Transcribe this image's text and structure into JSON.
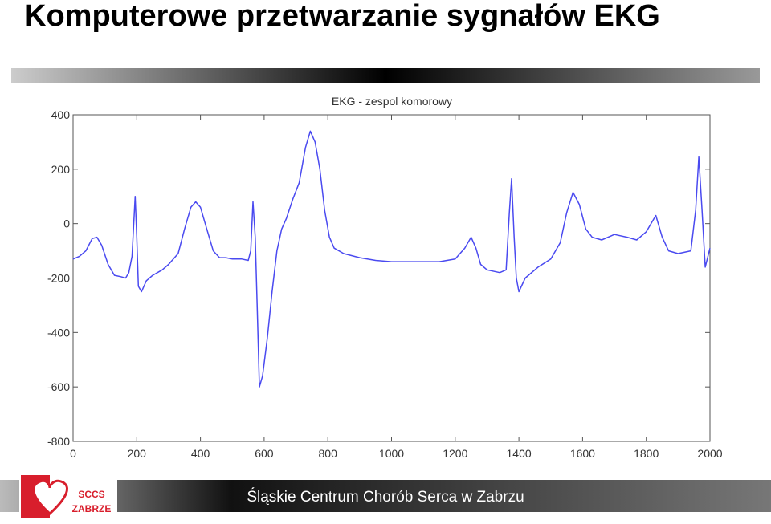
{
  "slide": {
    "title": "Komputerowe przetwarzanie sygnałów EKG",
    "footer": "Śląskie Centrum Chorób Serca w Zabrzu",
    "logo_line1": "SCCS",
    "logo_line2": "ZABRZE"
  },
  "chart_data": {
    "type": "line",
    "title": "EKG - zespol komorowy",
    "color": "#4a4af0",
    "x": [
      0,
      20,
      40,
      60,
      75,
      90,
      110,
      130,
      150,
      165,
      175,
      185,
      195,
      200,
      205,
      215,
      230,
      250,
      280,
      300,
      330,
      350,
      370,
      385,
      400,
      420,
      440,
      460,
      480,
      500,
      530,
      550,
      558,
      565,
      572,
      578,
      585,
      595,
      610,
      625,
      640,
      655,
      670,
      690,
      710,
      730,
      745,
      760,
      775,
      790,
      805,
      820,
      850,
      900,
      950,
      1000,
      1050,
      1100,
      1150,
      1200,
      1230,
      1250,
      1265,
      1280,
      1300,
      1340,
      1360,
      1370,
      1377,
      1385,
      1392,
      1400,
      1420,
      1460,
      1500,
      1530,
      1550,
      1570,
      1590,
      1610,
      1630,
      1660,
      1700,
      1740,
      1770,
      1800,
      1830,
      1850,
      1870,
      1900,
      1940,
      1955,
      1965,
      1975,
      1985,
      2000
    ],
    "values": [
      -130,
      -120,
      -100,
      -55,
      -50,
      -80,
      -150,
      -190,
      -195,
      -200,
      -180,
      -120,
      100,
      -50,
      -230,
      -250,
      -210,
      -190,
      -170,
      -150,
      -110,
      -20,
      60,
      80,
      60,
      -20,
      -100,
      -125,
      -125,
      -130,
      -130,
      -135,
      -100,
      80,
      -50,
      -300,
      -600,
      -560,
      -420,
      -250,
      -100,
      -20,
      20,
      90,
      150,
      280,
      340,
      300,
      200,
      50,
      -50,
      -90,
      -110,
      -125,
      -135,
      -140,
      -140,
      -140,
      -140,
      -130,
      -90,
      -50,
      -90,
      -150,
      -170,
      -180,
      -170,
      40,
      165,
      -50,
      -200,
      -250,
      -200,
      -160,
      -130,
      -70,
      40,
      115,
      70,
      -20,
      -50,
      -60,
      -40,
      -50,
      -60,
      -30,
      30,
      -50,
      -100,
      -110,
      -100,
      50,
      245,
      50,
      -160,
      -90
    ],
    "xlim": [
      0,
      2000
    ],
    "ylim": [
      -800,
      400
    ],
    "xticks": [
      0,
      200,
      400,
      600,
      800,
      1000,
      1200,
      1400,
      1600,
      1800,
      2000
    ],
    "yticks": [
      -800,
      -600,
      -400,
      -200,
      0,
      200,
      400
    ]
  }
}
